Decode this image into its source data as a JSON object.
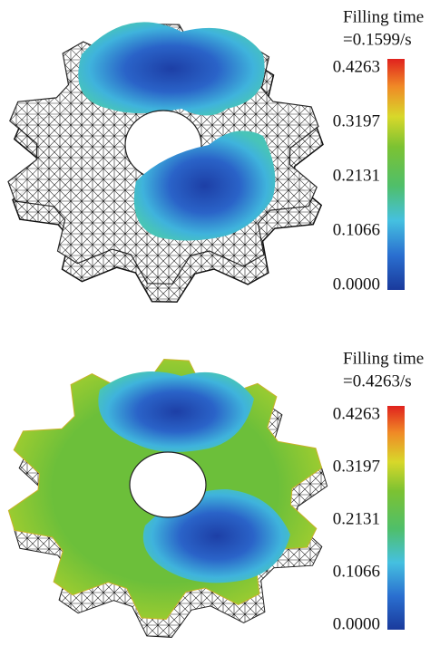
{
  "panels": [
    {
      "legend": {
        "title": "Filling time",
        "subtitle": "=0.1599/s",
        "ticks": [
          "0.4263",
          "0.3197",
          "0.2131",
          "0.1066",
          "0.0000"
        ]
      }
    },
    {
      "legend": {
        "title": "Filling time",
        "subtitle": "=0.4263/s",
        "ticks": [
          "0.4263",
          "0.3197",
          "0.2131",
          "0.1066",
          "0.0000"
        ]
      }
    }
  ]
}
